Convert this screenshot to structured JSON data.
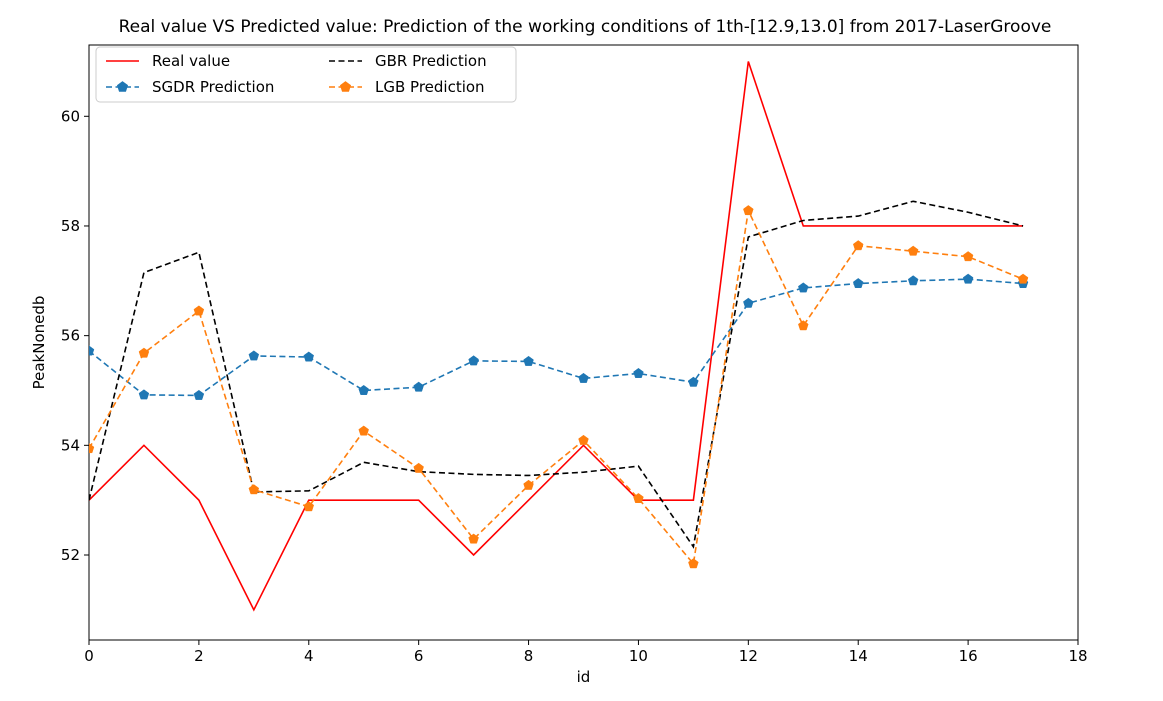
{
  "chart_data": {
    "type": "line",
    "title": "Real value VS Predicted value: Prediction of the working conditions of 1th-[12.9,13.0] from 2017-LaserGroove",
    "xlabel": "id",
    "ylabel": "PeakNonedb",
    "xlim": [
      0,
      18
    ],
    "ylim": [
      50.45,
      61.3
    ],
    "xticks": [
      0,
      2,
      4,
      6,
      8,
      10,
      12,
      14,
      16,
      18
    ],
    "yticks": [
      52,
      54,
      56,
      58,
      60
    ],
    "x": [
      0,
      1,
      2,
      3,
      4,
      5,
      6,
      7,
      8,
      9,
      10,
      11,
      12,
      13,
      14,
      15,
      16,
      17
    ],
    "legend_position": "top-left",
    "series": [
      {
        "name": "Real value",
        "color": "#ff0000",
        "style": "solid",
        "marker": "none",
        "values": [
          53,
          54,
          53,
          51,
          53,
          53,
          53,
          52,
          53,
          54,
          53,
          53,
          61,
          58,
          58,
          58,
          58,
          58
        ]
      },
      {
        "name": "SGDR Prediction",
        "color": "#1f77b4",
        "style": "dashed",
        "marker": "pentagon",
        "values": [
          55.72,
          54.92,
          54.91,
          55.63,
          55.61,
          55.0,
          55.06,
          55.54,
          55.53,
          55.22,
          55.31,
          55.15,
          56.59,
          56.87,
          56.95,
          57.0,
          57.03,
          56.95
        ]
      },
      {
        "name": "GBR Prediction",
        "color": "#000000",
        "style": "dashed",
        "marker": "none",
        "values": [
          53.0,
          57.15,
          57.52,
          53.15,
          53.17,
          53.69,
          53.52,
          53.47,
          53.45,
          53.51,
          53.62,
          52.15,
          57.8,
          58.1,
          58.18,
          58.45,
          58.25,
          58.0
        ]
      },
      {
        "name": "LGB Prediction",
        "color": "#ff7f0e",
        "style": "dashed",
        "marker": "pentagon",
        "values": [
          53.94,
          55.68,
          56.45,
          53.19,
          52.88,
          54.26,
          53.58,
          52.29,
          53.27,
          54.09,
          53.03,
          51.84,
          58.28,
          56.18,
          57.64,
          57.54,
          57.44,
          57.03
        ]
      }
    ]
  }
}
